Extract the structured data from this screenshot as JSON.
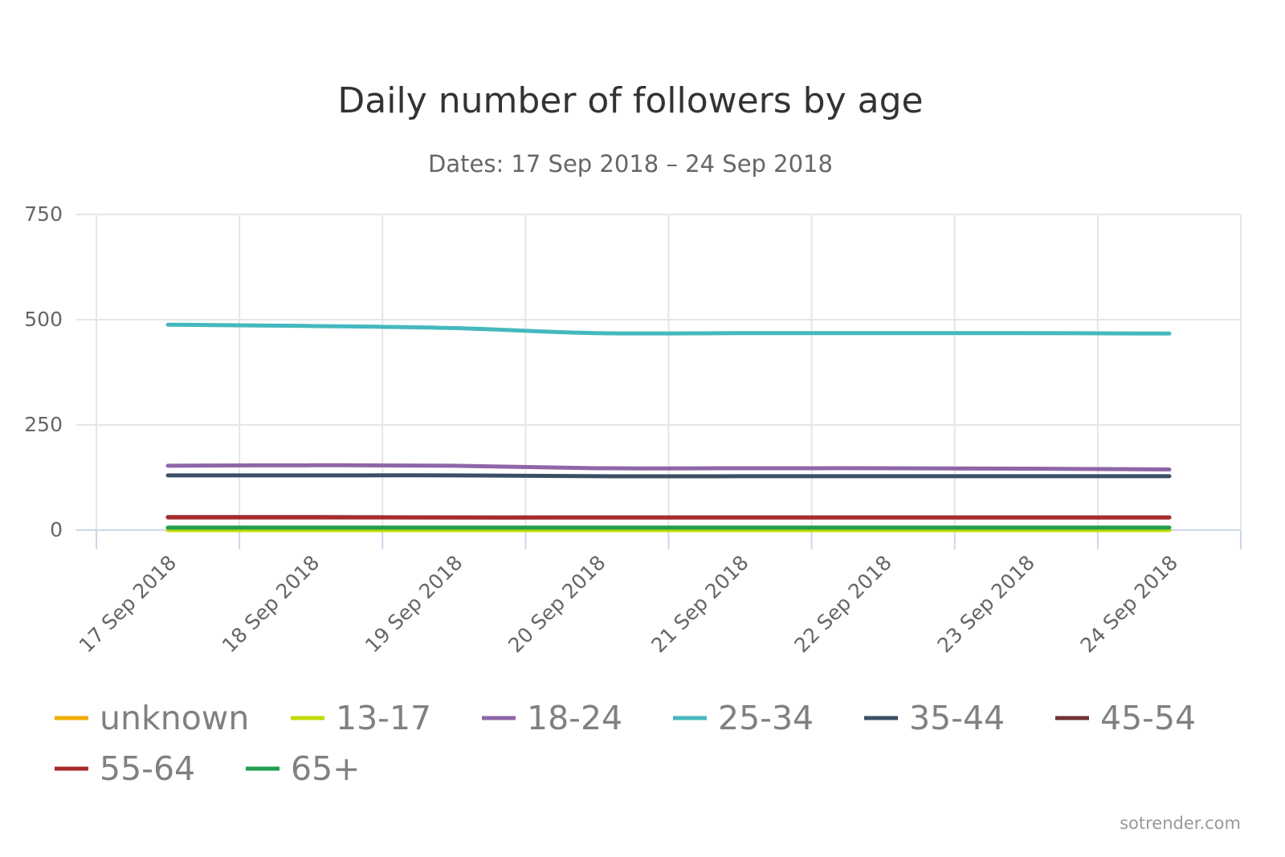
{
  "chart_data": {
    "type": "line",
    "title": "Daily number of followers by age",
    "subtitle": "Dates: 17 Sep 2018 – 24 Sep 2018",
    "xlabel": "",
    "ylabel": "",
    "categories": [
      "17 Sep 2018",
      "18 Sep 2018",
      "19 Sep 2018",
      "20 Sep 2018",
      "21 Sep 2018",
      "22 Sep 2018",
      "23 Sep 2018",
      "24 Sep 2018"
    ],
    "ylim": [
      0,
      750
    ],
    "yticks": [
      "0",
      "250",
      "500",
      "750"
    ],
    "grid": true,
    "legend_position": "bottom",
    "series": [
      {
        "name": "unknown",
        "color": "#f0ab00",
        "values": [
          0,
          0,
          0,
          0,
          0,
          0,
          0,
          0
        ]
      },
      {
        "name": "13-17",
        "color": "#bfdb00",
        "values": [
          0,
          0,
          0,
          0,
          0,
          0,
          0,
          0
        ]
      },
      {
        "name": "18-24",
        "color": "#8e66a8",
        "values": [
          153,
          154,
          153,
          147,
          147,
          147,
          146,
          144
        ]
      },
      {
        "name": "25-34",
        "color": "#45b8bf",
        "values": [
          488,
          485,
          480,
          468,
          468,
          468,
          468,
          467
        ]
      },
      {
        "name": "35-44",
        "color": "#3d4f66",
        "values": [
          130,
          130,
          130,
          128,
          128,
          128,
          128,
          128
        ]
      },
      {
        "name": "45-54",
        "color": "#703333",
        "values": [
          31,
          31,
          30,
          30,
          30,
          30,
          30,
          30
        ]
      },
      {
        "name": "55-64",
        "color": "#a82b2b",
        "values": [
          30,
          30,
          30,
          30,
          30,
          30,
          30,
          30
        ]
      },
      {
        "name": "65+",
        "color": "#219e4f",
        "values": [
          6,
          6,
          6,
          6,
          6,
          6,
          6,
          6
        ]
      }
    ]
  },
  "credit": "sotrender.com"
}
